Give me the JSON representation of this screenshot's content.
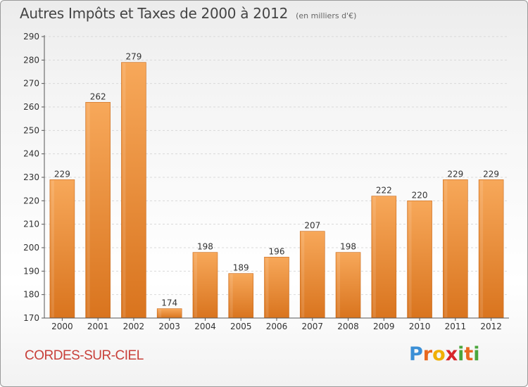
{
  "header": {
    "title": "Autres Impôts et Taxes de 2000 à 2012",
    "subtitle": "(en milliers d'€)"
  },
  "footer": {
    "city": "CORDES-SUR-CIEL",
    "logo": "Proxiti"
  },
  "colors": {
    "bar_top": "#f7a85a",
    "bar_bottom": "#d9741e",
    "bar_edge": "#c96a1c",
    "axis": "#555555",
    "grid": "#d9d9d9",
    "city": "#c8403a"
  },
  "chart_data": {
    "type": "bar",
    "categories": [
      "2000",
      "2001",
      "2002",
      "2003",
      "2004",
      "2005",
      "2006",
      "2007",
      "2008",
      "2009",
      "2010",
      "2011",
      "2012"
    ],
    "values": [
      229,
      262,
      279,
      174,
      198,
      189,
      196,
      207,
      198,
      222,
      220,
      229,
      229
    ],
    "ylim": [
      170,
      290
    ],
    "yticks": [
      170,
      180,
      190,
      200,
      210,
      220,
      230,
      240,
      250,
      260,
      270,
      280,
      290
    ],
    "grid": "horizontal dashed",
    "data_labels": true
  }
}
